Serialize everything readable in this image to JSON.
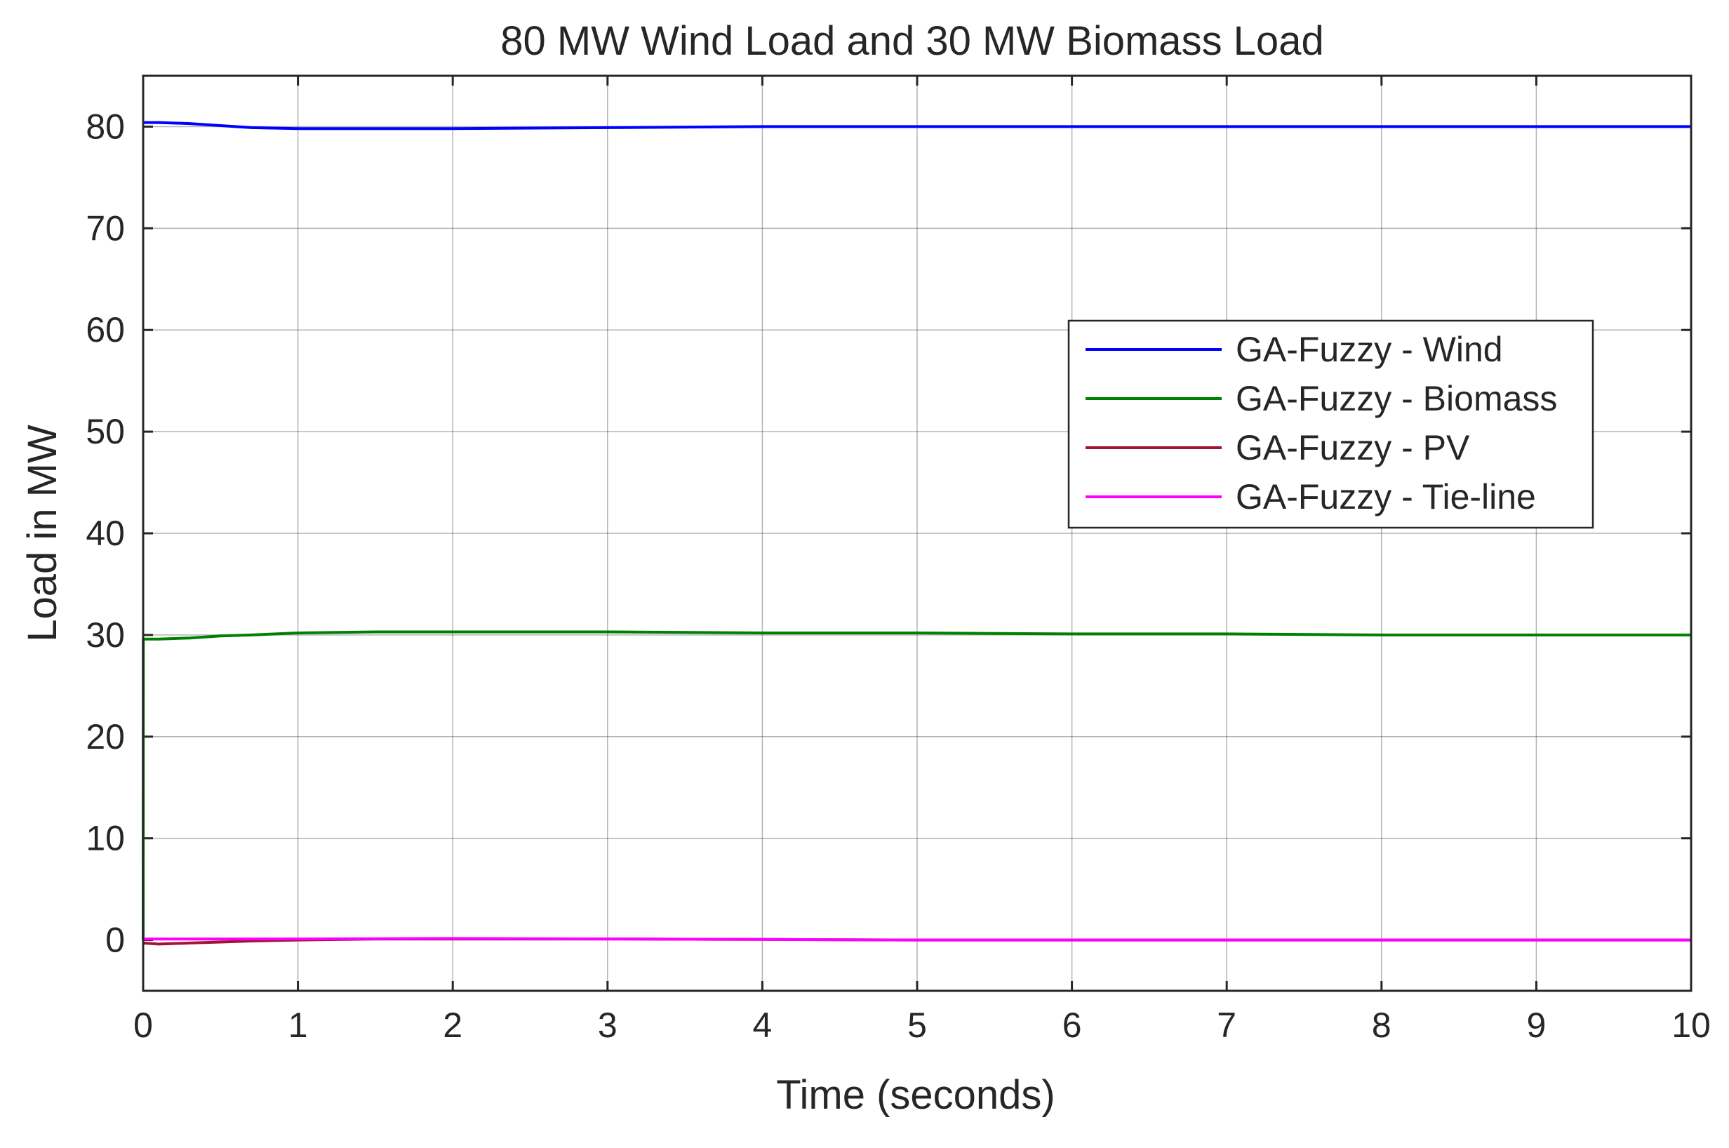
{
  "chart_data": {
    "type": "line",
    "title": "80 MW Wind Load and 30 MW Biomass Load",
    "xlabel": "Time (seconds)",
    "ylabel": "Load in MW",
    "xlim": [
      0,
      10
    ],
    "ylim": [
      -5,
      85
    ],
    "xticks": [
      0,
      1,
      2,
      3,
      4,
      5,
      6,
      7,
      8,
      9,
      10
    ],
    "yticks": [
      0,
      10,
      20,
      30,
      40,
      50,
      60,
      70,
      80
    ],
    "grid": true,
    "legend_position": "right",
    "series": [
      {
        "name": "GA-Fuzzy - Wind",
        "color": "#0000ff",
        "x": [
          0,
          0.1,
          0.3,
          0.5,
          0.7,
          1.0,
          1.5,
          2.0,
          3.0,
          4.0,
          5.0,
          6.0,
          7.0,
          8.0,
          9.0,
          10.0
        ],
        "y": [
          80.4,
          80.4,
          80.3,
          80.1,
          79.9,
          79.8,
          79.8,
          79.8,
          79.9,
          80.0,
          80.0,
          80.0,
          80.0,
          80.0,
          80.0,
          80.0
        ]
      },
      {
        "name": "GA-Fuzzy - Biomass",
        "color": "#008000",
        "x": [
          0,
          0.001,
          0.1,
          0.3,
          0.5,
          0.7,
          1.0,
          1.5,
          2.0,
          3.0,
          4.0,
          5.0,
          6.0,
          7.0,
          8.0,
          9.0,
          10.0
        ],
        "y": [
          0,
          29.6,
          29.6,
          29.7,
          29.9,
          30.0,
          30.2,
          30.3,
          30.3,
          30.3,
          30.2,
          30.2,
          30.1,
          30.1,
          30.0,
          30.0,
          30.0
        ]
      },
      {
        "name": "GA-Fuzzy - PV",
        "color": "#a2142f",
        "x": [
          0,
          0.1,
          0.3,
          0.5,
          0.7,
          1.0,
          1.5,
          2.0,
          3.0,
          4.0,
          5.0,
          6.0,
          7.0,
          8.0,
          9.0,
          10.0
        ],
        "y": [
          -0.3,
          -0.4,
          -0.3,
          -0.2,
          -0.1,
          0.0,
          0.1,
          0.1,
          0.1,
          0.05,
          0.0,
          0.0,
          0.0,
          0.0,
          0.0,
          0.0
        ]
      },
      {
        "name": "GA-Fuzzy - Tie-line",
        "color": "#ff00ff",
        "x": [
          0,
          0.5,
          1.0,
          2.0,
          3.0,
          4.0,
          5.0,
          6.0,
          7.0,
          8.0,
          9.0,
          10.0
        ],
        "y": [
          0.1,
          0.1,
          0.1,
          0.15,
          0.1,
          0.05,
          0.0,
          0.0,
          0.0,
          0.0,
          0.0,
          0.0
        ]
      }
    ]
  }
}
